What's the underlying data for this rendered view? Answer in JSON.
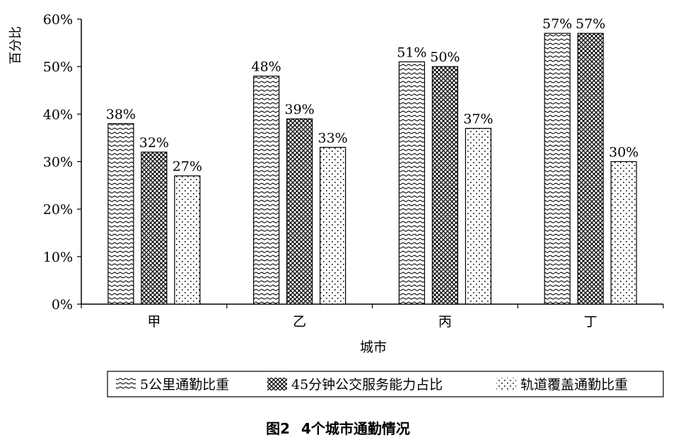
{
  "chart_data": {
    "type": "bar",
    "categories": [
      "甲",
      "乙",
      "丙",
      "丁"
    ],
    "series": [
      {
        "name": "5公里通勤比重",
        "values": [
          38,
          48,
          51,
          57
        ],
        "labels": [
          "38%",
          "48%",
          "51%",
          "57%"
        ],
        "pattern": "wave"
      },
      {
        "name": "45分钟公交服务能力占比",
        "values": [
          32,
          39,
          50,
          57
        ],
        "labels": [
          "32%",
          "39%",
          "50%",
          "57%"
        ],
        "pattern": "cross"
      },
      {
        "name": "轨道覆盖通勤比重",
        "values": [
          27,
          33,
          37,
          30
        ],
        "labels": [
          "27%",
          "33%",
          "37%",
          "30%"
        ],
        "pattern": "dots"
      }
    ],
    "xlabel": "城市",
    "ylabel": "百分比",
    "ylim": [
      0,
      60
    ],
    "yticks": [
      0,
      10,
      20,
      30,
      40,
      50,
      60
    ],
    "ytick_labels": [
      "0%",
      "10%",
      "20%",
      "30%",
      "40%",
      "50%",
      "60%"
    ],
    "grid": false,
    "legend_position": "bottom"
  },
  "caption": {
    "figure_no": "图2",
    "text": "4个城市通勤情况"
  }
}
